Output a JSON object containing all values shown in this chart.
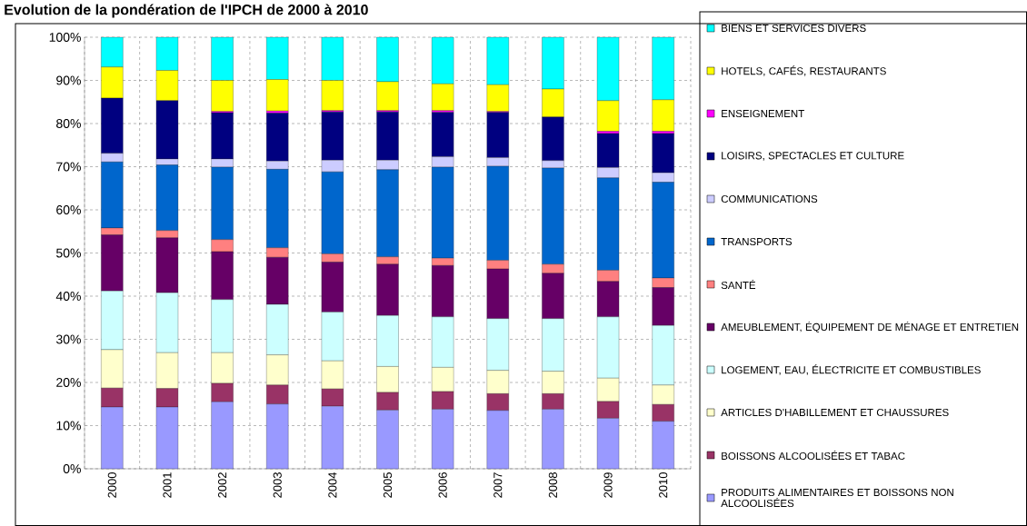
{
  "chart_data": {
    "type": "bar",
    "stacked": true,
    "title": "Evolution de la pondération de l'IPCH de 2000 à 2010",
    "categories": [
      "2000",
      "2001",
      "2002",
      "2003",
      "2004",
      "2005",
      "2006",
      "2007",
      "2008",
      "2009",
      "2010"
    ],
    "series": [
      {
        "name": "PRODUITS ALIMENTAIRES ET BOISSONS NON ALCOOLISÉES",
        "color": "#9999ff",
        "values": [
          14.3,
          14.3,
          15.5,
          15.0,
          14.5,
          13.6,
          13.8,
          13.5,
          13.8,
          11.7,
          11.0
        ]
      },
      {
        "name": "BOISSONS ALCOOLISÉES ET TABAC",
        "color": "#993366",
        "values": [
          4.4,
          4.3,
          4.3,
          4.4,
          4.0,
          4.1,
          4.1,
          3.9,
          3.6,
          3.9,
          3.9
        ]
      },
      {
        "name": "ARTICLES D'HABILLEMENT ET CHAUSSURES",
        "color": "#ffffcc",
        "values": [
          8.9,
          8.3,
          7.1,
          7.0,
          6.5,
          6.0,
          5.6,
          5.4,
          5.2,
          5.4,
          4.5
        ]
      },
      {
        "name": "LOGEMENT, EAU, ÉLECTRICITE ET COMBUSTIBLES",
        "color": "#ccffff",
        "values": [
          13.6,
          13.9,
          12.3,
          11.7,
          11.3,
          11.8,
          11.7,
          12.0,
          12.2,
          14.2,
          13.8
        ]
      },
      {
        "name": "AMEUBLEMENT, ÉQUIPEMENT DE MÉNAGE ET ENTRETIEN",
        "color": "#660066",
        "values": [
          13.0,
          12.7,
          11.1,
          10.9,
          11.6,
          11.9,
          11.9,
          11.5,
          10.5,
          8.2,
          8.8
        ]
      },
      {
        "name": "SANTÉ",
        "color": "#ff8080",
        "values": [
          1.6,
          1.7,
          2.8,
          2.2,
          1.9,
          1.7,
          1.7,
          2.0,
          2.1,
          2.6,
          2.2
        ]
      },
      {
        "name": "TRANSPORTS",
        "color": "#0066cc",
        "values": [
          15.3,
          15.2,
          16.8,
          18.2,
          19.0,
          20.2,
          21.1,
          21.8,
          22.3,
          21.4,
          22.2
        ]
      },
      {
        "name": "COMMUNICATIONS",
        "color": "#ccccff",
        "values": [
          2.0,
          1.4,
          1.9,
          1.9,
          2.7,
          2.2,
          2.4,
          2.0,
          1.7,
          2.4,
          2.2
        ]
      },
      {
        "name": "LOISIRS, SPECTACLES ET CULTURE",
        "color": "#000080",
        "values": [
          12.8,
          13.5,
          10.7,
          11.1,
          11.2,
          11.2,
          10.3,
          10.5,
          10.1,
          7.9,
          9.1
        ]
      },
      {
        "name": "ENSEIGNEMENT",
        "color": "#ff00ff",
        "values": [
          0,
          0,
          0.3,
          0.5,
          0.3,
          0.3,
          0.4,
          0.2,
          0,
          0.5,
          0.5
        ]
      },
      {
        "name": "HOTELS, CAFÉS, RESTAURANTS",
        "color": "#ffff00",
        "values": [
          7.2,
          7.0,
          7.2,
          7.3,
          7.0,
          6.7,
          6.2,
          6.2,
          6.5,
          7.1,
          7.3
        ]
      },
      {
        "name": "BIENS ET SERVICES DIVERS",
        "color": "#00ffff",
        "values": [
          6.9,
          7.7,
          10.0,
          9.8,
          10.0,
          10.3,
          10.8,
          11.0,
          12.0,
          14.7,
          14.5
        ]
      }
    ],
    "ylim": [
      0,
      100
    ],
    "yticks": [
      {
        "value": 0,
        "label": "0%"
      },
      {
        "value": 10,
        "label": "10%"
      },
      {
        "value": 20,
        "label": "20%"
      },
      {
        "value": 30,
        "label": "30%"
      },
      {
        "value": 40,
        "label": "40%"
      },
      {
        "value": 50,
        "label": "50%"
      },
      {
        "value": 60,
        "label": "60%"
      },
      {
        "value": 70,
        "label": "70%"
      },
      {
        "value": 80,
        "label": "80%"
      },
      {
        "value": 90,
        "label": "90%"
      },
      {
        "value": 100,
        "label": "100%"
      }
    ],
    "grid": true,
    "legend": "right"
  }
}
